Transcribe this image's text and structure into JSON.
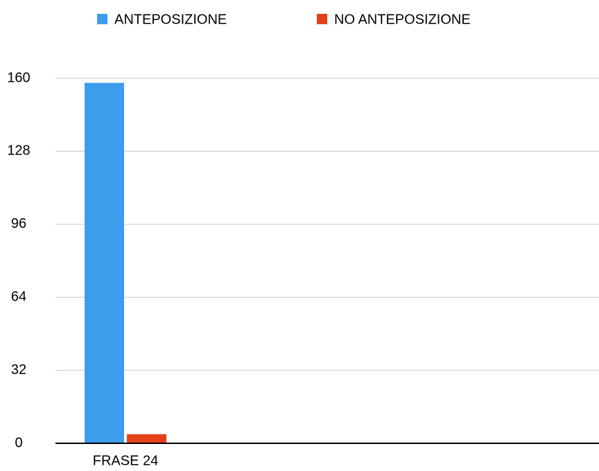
{
  "chart_data": {
    "type": "bar",
    "categories": [
      "FRASE 24"
    ],
    "series": [
      {
        "name": "ANTEPOSIZIONE",
        "color": "#3d9cec",
        "values": [
          158
        ]
      },
      {
        "name": "NO ANTEPOSIZIONE",
        "color": "#e5401c",
        "values": [
          4
        ]
      }
    ],
    "ylim": [
      0,
      160
    ],
    "yticks": [
      0,
      32,
      64,
      96,
      128,
      160
    ],
    "grid": true,
    "legend": "top"
  }
}
